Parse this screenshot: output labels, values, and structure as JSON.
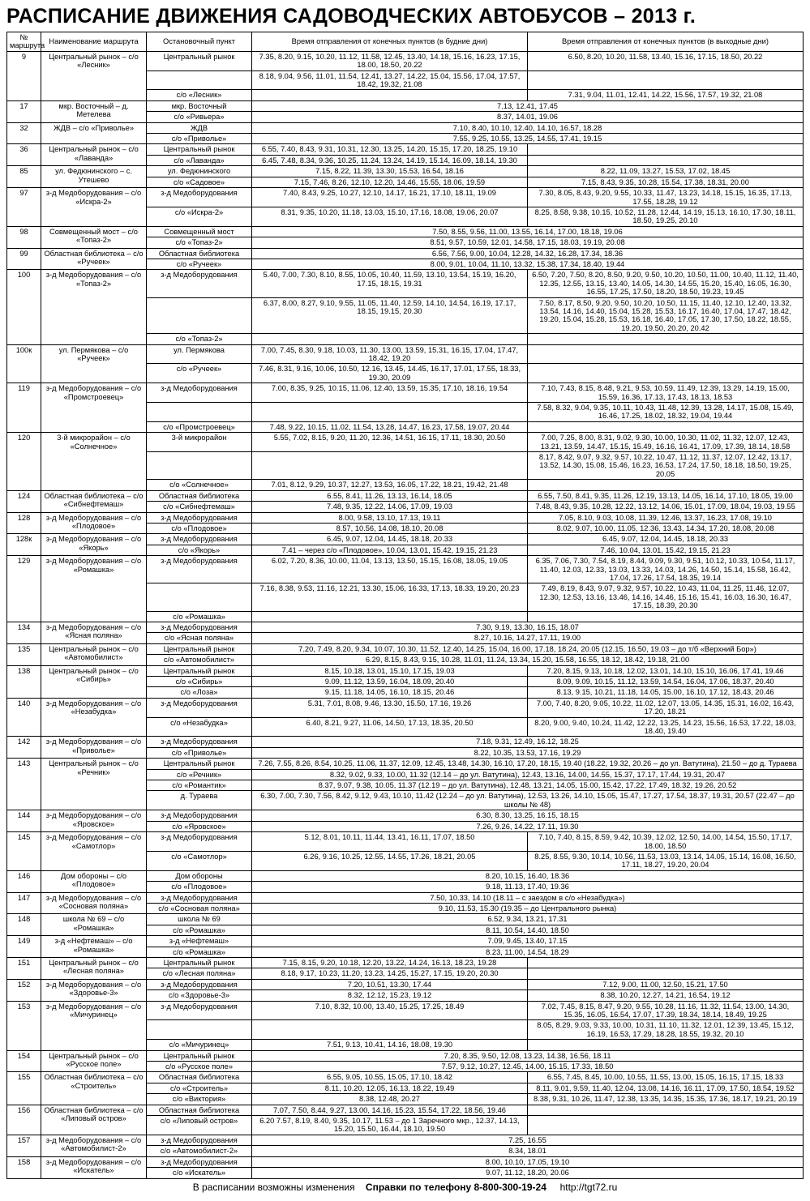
{
  "title": "РАСПИСАНИЕ ДВИЖЕНИЯ САДОВОДЧЕСКИХ АВТОБУСОВ – 2013 г.",
  "columns": [
    "№ маршрута",
    "Наименование маршрута",
    "Остановочный пункт",
    "Время отправления от конечных пунктов (в будние дни)",
    "Время отправления от конечных пунктов (в выходные дни)"
  ],
  "footer": {
    "note": "В расписании возможны изменения",
    "query": "Справки по телефону",
    "phone": "8-800-300-19-24",
    "url": "http://tgt72.ru"
  },
  "rows": [
    {
      "num": "9",
      "name": "Центральный рынок – с/о «Лесник»",
      "stops": [
        "Центральный рынок",
        "",
        "с/о «Лесник»"
      ],
      "wk": [
        "7.35, 8.20, 9.15, 10.20, 11.12, 11.58, 12.45, 13.40, 14.18, 15.16, 16.23, 17.15, 18.00, 18.50, 20.22",
        "8.18, 9.04, 9.56, 11.01, 11.54, 12.41, 13.27, 14.22, 15.04, 15.56, 17.04, 17.57, 18.42, 19.32, 21.08"
      ],
      "we": [
        "6.50, 8.20, 10.20, 11.58, 13.40, 15.16, 17.15, 18.50, 20.22",
        "",
        "7.31, 9.04, 11.01, 12.41, 14.22, 15.56, 17.57, 19.32, 21.08"
      ]
    },
    {
      "num": "17",
      "name": "мкр. Восточный – д. Метелева",
      "stops": [
        "мкр. Восточный",
        "с/о «Ривьера»"
      ],
      "merged": true,
      "wk": [
        "7.13, 12.41, 17.45",
        "8.37, 14.01, 19.06"
      ]
    },
    {
      "num": "32",
      "name": "ЖДВ – с/о «Приволье»",
      "stops": [
        "ЖДВ",
        "с/о «Приволье»"
      ],
      "merged": true,
      "wk": [
        "7.10, 8.40, 10.10, 12.40, 14.10, 16.57, 18.28",
        "7.55, 9.25, 10.55, 13.25, 14.55, 17.41, 19.15"
      ]
    },
    {
      "num": "36",
      "name": "Центральный рынок – с/о «Лаванда»",
      "stops": [
        "Центральный рынок",
        "с/о «Лаванда»"
      ],
      "wk": [
        "6.55, 7.40, 8.43, 9.31, 10.31, 12.30, 13.25, 14.20, 15.15, 17.20, 18.25, 19.10",
        "6.45, 7.48, 8.34, 9.36, 10.25, 11.24, 13.24, 14.19, 15.14, 16.09, 18.14, 19.30"
      ]
    },
    {
      "num": "85",
      "name": "ул. Федюнинского – с. Утешево",
      "stops": [
        "ул. Федюнинского",
        "с/о «Садовое»"
      ],
      "wk": [
        "7.15, 8.22, 11.39, 13.30, 15.53, 16.54, 18.16",
        "7.15, 7.46, 8.26, 12.10, 12.20, 14.46, 15.55, 18.06, 19.59"
      ],
      "we": [
        "8.22, 11.09, 13.27, 15.53, 17.02, 18.45",
        "7.15, 8.43, 9.35, 10.28, 15.54, 17.38, 18.31, 20.00"
      ]
    },
    {
      "num": "97",
      "name": "з-д Медоборудования – с/о «Искра-2»",
      "stops": [
        "з-д Медоборудования",
        "с/о «Искра-2»"
      ],
      "wk": [
        "7.40, 8.43, 9.25, 10.27, 12.10, 14.17, 16.21, 17.10, 18.11, 19.09",
        "8.31, 9.35, 10.20, 11.18, 13.03, 15.10, 17.16, 18.08, 19.06, 20.07"
      ],
      "we": [
        "7.30, 8.05, 8.43, 9.20, 9.55, 10.33, 11.47, 13.23, 14.18, 15.15, 16.35, 17.13, 17.55, 18.28, 19.12",
        "8.25, 8.58, 9.38, 10.15, 10.52, 11.28, 12.44, 14.19, 15.13, 16.10, 17.30, 18.11, 18.50, 19.25, 20.10"
      ]
    },
    {
      "num": "98",
      "name": "Совмещенный мост – с/о «Топаз-2»",
      "stops": [
        "Совмещенный мост",
        "с/о «Топаз-2»"
      ],
      "merged": true,
      "wk": [
        "7.50, 8.55, 9.56, 11.00, 13.55, 16.14, 17.00, 18.18, 19.06",
        "8.51, 9.57, 10.59, 12.01, 14.58, 17.15, 18.03, 19.19, 20.08"
      ]
    },
    {
      "num": "99",
      "name": "Областная библиотека – с/о «Ручеек»",
      "stops": [
        "Областная библиотека",
        "с/о «Ручеек»"
      ],
      "merged": true,
      "wk": [
        "6.56, 7.56, 9.00, 10.04, 12.28, 14.32, 16.28, 17.34, 18.36",
        "8.00, 9.01, 10.04, 11.10, 13.32, 15.38, 17.34, 18.40, 19.44"
      ]
    },
    {
      "num": "100",
      "name": "з-д Медоборудования – с/о «Топаз-2»",
      "stops": [
        "з-д Медоборудования",
        "",
        "с/о «Топаз-2»"
      ],
      "wk": [
        "5.40, 7.00, 7.30, 8.10, 8.55, 10.05, 10.40, 11.59, 13.10, 13.54, 15.19, 16.20, 17.15, 18.15, 19.31",
        "6.37, 8.00, 8.27, 9.10, 9.55, 11.05, 11.40, 12.59, 14.10, 14.54, 16.19, 17.17, 18.15, 19.15, 20.30"
      ],
      "we": [
        "6.50, 7.20, 7.50, 8.20, 8.50, 9.20, 9.50, 10.20, 10.50, 11.00, 10.40, 11.12, 11.40, 12.35, 12.55, 13.15, 13.40, 14.05, 14.30, 14.55, 15.20, 15.40, 16.05, 16.30, 16.55, 17.25, 17.50, 18.20, 18.50, 19.23, 19.45",
        "7.50, 8.17, 8.50, 9.20, 9.50, 10.20, 10.50, 11.15, 11.40, 12.10, 12.40, 13.32, 13.54, 14.16, 14.40, 15.04, 15.28, 15.53, 16.17, 16.40, 17.04, 17.47, 18.42, 19.20, 15.04, 15.28, 15.53, 16.18, 16.40, 17.05, 17.30, 17.50, 18.22, 18.55, 19.20, 19.50, 20.20, 20.42"
      ]
    },
    {
      "num": "100к",
      "name": "ул. Пермякова – с/о «Ручеек»",
      "stops": [
        "ул. Пермякова",
        "с/о «Ручеек»"
      ],
      "wk": [
        "7.00, 7.45, 8.30, 9.18, 10.03, 11.30, 13.00, 13.59, 15.31, 16.15, 17.04, 17.47, 18.42, 19.20",
        "7.46, 8.31, 9.16, 10.06, 10.50, 12.16, 13.45, 14.45, 16.17, 17.01, 17.55, 18.33, 19.30, 20.09"
      ]
    },
    {
      "num": "119",
      "name": "з-д Медоборудования – с/о «Промстроевец»",
      "stops": [
        "з-д Медоборудования",
        "",
        "с/о «Промстроевец»"
      ],
      "wk": [
        "7.00, 8.35, 9.25, 10.15, 11.06, 12.40, 13.59, 15.35, 17.10, 18.16, 19.54",
        "",
        "7.48, 9.22, 10.15, 11.02, 11.54, 13.28, 14.47, 16.23, 17.58, 19.07, 20.44"
      ],
      "we": [
        "7.10, 7.43, 8.15, 8.48, 9.21, 9.53, 10.59, 11.49, 12.39, 13.29, 14.19, 15.00, 15.59, 16.36, 17.13, 17.43, 18.13, 18.53",
        "7.58, 8.32, 9.04, 9.35, 10.11, 10.43, 11.48, 12.39, 13.28, 14.17, 15.08, 15.49, 16.46, 17.25, 18.02, 18.32, 19.04, 19.44"
      ]
    },
    {
      "num": "120",
      "name": "3-й микрорайон – с/о «Солнечное»",
      "stops": [
        "3-й микрорайон",
        "",
        "с/о «Солнечное»"
      ],
      "wk": [
        "5.55, 7.02, 8.15, 9.20, 11.20, 12.36, 14.51, 16.15, 17.11, 18.30, 20.50",
        "",
        "7.01, 8.12, 9.29, 10.37, 12.27, 13.53, 16.05, 17.22, 18.21, 19.42, 21.48"
      ],
      "we": [
        "7.00, 7.25, 8.00, 8.31, 9.02, 9.30, 10.00, 10.30, 11.02, 11.32, 12.07, 12.43, 13.21, 13.59, 14.47, 15.15, 15.49, 16.16, 16.41, 17.09, 17.39, 18.14, 18.58",
        "8.17, 8.42, 9.07, 9.32, 9.57, 10.22, 10.47, 11.12, 11.37, 12.07, 12.42, 13.17, 13.52, 14.30, 15.08, 15.46, 16.23, 16.53, 17.24, 17.50, 18.18, 18.50, 19.25, 20.05"
      ]
    },
    {
      "num": "124",
      "name": "Областная библиотека – с/о «Сибнефтемаш»",
      "stops": [
        "Областная библиотека",
        "с/о «Сибнефтемаш»"
      ],
      "wk": [
        "6.55, 8.41, 11.26, 13.13, 16.14, 18.05",
        "7.48, 9.35, 12.22, 14.06, 17.09, 19.03"
      ],
      "we": [
        "6.55, 7.50, 8.41, 9.35, 11.26, 12.19, 13.13, 14.05, 16.14, 17.10, 18.05, 19.00",
        "7.48, 8.43, 9.35, 10.28, 12.22, 13.12, 14.06, 15.01, 17.09, 18.04, 19.03, 19.55"
      ]
    },
    {
      "num": "128",
      "name": "з-д Медоборудования – с/о «Плодовое»",
      "stops": [
        "з-д Медоборудования",
        "с/о «Плодовое»"
      ],
      "wk": [
        "8.00, 9.58, 13.10, 17.13, 19.11",
        "8.57, 10.56, 14.08, 18.10, 20.08"
      ],
      "we": [
        "7.05, 8.10, 9.03, 10.08, 11.39, 12.46, 13.37, 16.23, 17.08, 19.10",
        "8.02, 9.07, 10.00, 11.05, 12.36, 13.43, 14.34, 17.20, 18.08, 20.08"
      ]
    },
    {
      "num": "128к",
      "name": "з-д Медоборудования – с/о «Якорь»",
      "stops": [
        "з-д Медоборудования",
        "с/о «Якорь»"
      ],
      "wk": [
        "6.45, 9.07, 12.04, 14.45, 18.18, 20.33",
        "7.41 – через с/о «Плодовое», 10.04, 13.01, 15.42, 19.15, 21.23"
      ],
      "we": [
        "6.45, 9.07, 12.04, 14.45, 18.18, 20.33",
        "7.46, 10.04, 13.01, 15.42, 19.15, 21.23"
      ]
    },
    {
      "num": "129",
      "name": "з-д Медоборудования – с/о «Ромашка»",
      "stops": [
        "з-д Медоборудования",
        "",
        "с/о «Ромашка»"
      ],
      "wk": [
        "6.02, 7.20, 8.36, 10.00, 11.04, 13.13, 13.50, 15.15, 16.08, 18.05, 19.05",
        "7.16, 8.38, 9.53, 11.16, 12.21, 13.30, 15.06, 16.33, 17.13, 18.33, 19.20, 20.23"
      ],
      "we": [
        "6.35, 7.06, 7.30, 7.54, 8.19, 8.44, 9.09, 9.30, 9.51, 10.12, 10.33, 10.54, 11.17, 11.40, 12.03, 12.33, 13.03, 13.33, 14.03, 14.26, 14.50, 15.14, 15.58, 16.42, 17.04, 17.26, 17.54, 18.35, 19.14",
        "7.49, 8.19, 8.43, 9.07, 9.32, 9.57, 10.22, 10.43, 11.04, 11.25, 11.46, 12.07, 12.30, 12.53, 13.16, 13.46, 14.16, 14.46, 15.16, 15.41, 16.03, 16.30, 16.47, 17.15, 18.39, 20.30"
      ]
    },
    {
      "num": "134",
      "name": "з-д Медоборудования – с/о «Ясная поляна»",
      "stops": [
        "з-д Медоборудования",
        "с/о «Ясная поляна»"
      ],
      "merged": true,
      "wk": [
        "7.30, 9.19, 13.30, 16.15, 18.07",
        "8.27, 10.16, 14.27, 17.11, 19.00"
      ]
    },
    {
      "num": "135",
      "name": "Центральный рынок – с/о «Автомобилист»",
      "stops": [
        "Центральный рынок",
        "с/о «Автомобилист»"
      ],
      "merged": true,
      "wk": [
        "7.20, 7.49, 8.20, 9.34, 10.07, 10.30, 11.52, 12.40, 14.25, 15.04, 16.00, 17.18, 18.24, 20.05 (12.15, 16.50, 19.03 – до т/б «Верхний Бор»)",
        "6.29, 8.15, 8.43, 9.15, 10.28, 11.01, 11.24, 13.34, 15.20, 15.58, 16.55, 18.12, 18.42, 19.18, 21.00"
      ]
    },
    {
      "num": "138",
      "name": "Центральный рынок – с/о «Сибирь»",
      "stops": [
        "Центральный рынок",
        "с/о «Сибирь»",
        "с/о «Лоза»"
      ],
      "wk": [
        "8.15, 10.18, 13.01, 15.10, 17.15, 19.03",
        "9.09, 11.12, 13.59, 16.04, 18.09, 20.40",
        "9.15, 11.18, 14.05, 16.10, 18.15, 20.46"
      ],
      "we": [
        "7.20, 8.15, 9.13, 10.18, 12.02, 13.01, 14.10, 15.10, 16.06, 17.41, 19.46",
        "8.09, 9.09, 10.15, 11.12, 13.59, 14.54, 16.04, 17.06, 18.37, 20.40",
        "8.13, 9.15, 10.21, 11.18, 14.05, 15.00, 16.10, 17.12, 18.43, 20.46"
      ]
    },
    {
      "num": "140",
      "name": "з-д Медоборудования – с/о «Незабудка»",
      "stops": [
        "з-д Медоборудования",
        "с/о «Незабудка»"
      ],
      "wk": [
        "5.31, 7.01, 8.08, 9.46, 13.30, 15.50, 17.16, 19.26",
        "6.40, 8.21, 9.27, 11.06, 14.50, 17.13, 18.35, 20.50"
      ],
      "we": [
        "7.00, 7.40, 8.20, 9.05, 10.22, 11.02, 12.07, 13.05, 14.35, 15.31, 16.02, 16.43, 17.20, 18.21",
        "8.20, 9.00, 9.40, 10.24, 11.42, 12.22, 13.25, 14.23, 15.56, 16.53, 17.22, 18.03, 18.40, 19.40"
      ]
    },
    {
      "num": "142",
      "name": "з-д Медоборудования – с/о «Приволье»",
      "stops": [
        "з-д Медоборудования",
        "с/о «Приволье»"
      ],
      "merged": true,
      "wk": [
        "7.18, 9.31, 12.49, 16.12, 18.25",
        "8.22, 10.35, 13.53, 17.16, 19.29"
      ]
    },
    {
      "num": "143",
      "name": "Центральный рынок – с/о «Речник»",
      "stops": [
        "Центральный рынок",
        "с/о «Речник»",
        "с/о «Романтик»",
        "д. Тураева"
      ],
      "merged": true,
      "wk": [
        "7.26, 7.55, 8.26, 8.54, 10.25, 11.06, 11.37, 12.09, 12.45, 13.48, 14.30, 16.10, 17.20, 18.15, 19.40 (18.22, 19.32, 20.26 – до ул. Ватутина), 21.50 – до д. Тураева",
        "8.32, 9.02, 9.33, 10.00, 11.32 (12.14 – до ул. Ватутина), 12.43, 13.16, 14.00, 14.55, 15.37, 17.17, 17.44, 19.31, 20.47",
        "8.37, 9.07, 9.38, 10.05, 11.37 (12.19 – до ул. Ватутина), 12.48, 13.21, 14.05, 15.00, 15.42, 17.22, 17.49, 18.32, 19.26, 20.52",
        "6.30, 7.00, 7.30, 7.56, 8.42, 9.12, 9.43, 10.10, 11.42 (12.24 – до ул. Ватутина), 12.53, 13.26, 14.10, 15.05, 15.47, 17.27, 17.54, 18.37, 19.31, 20.57 (22.47 – до школы № 48)"
      ]
    },
    {
      "num": "144",
      "name": "з-д Медоборудования – с/о «Яровское»",
      "stops": [
        "з-д Медоборудования",
        "с/о «Яровское»"
      ],
      "merged": true,
      "wk": [
        "6.30, 8.30, 13.25, 16.15, 18.15",
        "7.26, 9.26, 14.22, 17.11, 19.30"
      ]
    },
    {
      "num": "145",
      "name": "з-д Медоборудования – с/о «Самотлор»",
      "stops": [
        "з-д Медоборудования",
        "с/о «Самотлор»"
      ],
      "wk": [
        "5.12, 8.01, 10.11, 11.44, 13.41, 16.11, 17.07, 18.50",
        "6.26, 9.16, 10.25, 12.55, 14.55, 17.26, 18.21, 20.05"
      ],
      "we": [
        "7.10, 7.40, 8.15, 8.59, 9.42, 10.39, 12.02, 12.50, 14.00, 14.54, 15.50, 17.17, 18.00, 18.50",
        "8.25, 8.55, 9.30, 10.14, 10.56, 11.53, 13.03, 13.14, 14.05, 15.14, 16.08, 16.50, 17.11, 18.27, 19.20, 20.04"
      ]
    },
    {
      "num": "146",
      "name": "Дом обороны – с/о «Плодовое»",
      "stops": [
        "Дом обороны",
        "с/о «Плодовое»"
      ],
      "merged": true,
      "wk": [
        "8.20, 10.15, 16.40, 18.36",
        "9.18, 11.13, 17.40, 19.36"
      ]
    },
    {
      "num": "147",
      "name": "з-д Медоборудования – с/о «Сосновая поляна»",
      "stops": [
        "з-д Медоборудования",
        "с/о «Сосновая поляна»"
      ],
      "merged": true,
      "wk": [
        "7.50, 10.33, 14.10 (18.11 – с заездом в с/о «Незабудка»)",
        "9.10, 11.53, 15.30 (19.35 – до Центрального рынка)"
      ]
    },
    {
      "num": "148",
      "name": "школа № 69 – с/о «Ромашка»",
      "stops": [
        "школа № 69",
        "с/о «Ромашка»"
      ],
      "merged": true,
      "wk": [
        "6.52, 9.34, 13.21, 17.31",
        "8.11, 10.54, 14.40, 18.50"
      ]
    },
    {
      "num": "149",
      "name": "з-д «Нефтемаш» – с/о «Ромашка»",
      "stops": [
        "з-д «Нефтемаш»",
        "с/о «Ромашка»"
      ],
      "merged": true,
      "wk": [
        "7.09, 9.45, 13.40, 17.15",
        "8.23, 11.00, 14.54, 18.29"
      ]
    },
    {
      "num": "151",
      "name": "Центральный рынок – с/о «Лесная поляна»",
      "stops": [
        "Центральный рынок",
        "с/о «Лесная поляна»"
      ],
      "wk": [
        "7.15, 8.15, 9.20, 10.18, 12.20, 13.22, 14.24, 16.13, 18.23, 19.28",
        "8.18, 9.17, 10.23, 11.20, 13.23, 14.25, 15.27, 17.15, 19.20, 20.30"
      ]
    },
    {
      "num": "152",
      "name": "з-д Медоборудования – с/о «Здоровье-3»",
      "stops": [
        "з-д Медоборудования",
        "с/о «Здоровье-3»"
      ],
      "wk": [
        "7.20, 10.51, 13.30, 17.44",
        "8.32, 12.12, 15.23, 19.12"
      ],
      "we": [
        "7.12, 9.00, 11.00, 12.50, 15.21, 17.50",
        "8.38, 10.20, 12.27, 14.21, 16.54, 19.12"
      ]
    },
    {
      "num": "153",
      "name": "з-д Медоборудования – с/о «Мичуринец»",
      "stops": [
        "з-д Медоборудования",
        "",
        "с/о «Мичуринец»"
      ],
      "wk": [
        "7.10, 8.32, 10.00, 13.40, 15.25, 17.25, 18.49",
        "",
        "7.51, 9.13, 10.41, 14.16, 18.08, 19.30"
      ],
      "we": [
        "7.02, 7.45, 8.15, 8.47, 9.20, 9.55, 10.28, 11.16, 11.32, 11.54, 13.00, 14.30, 15.35, 16.05, 16.54, 17.07, 17.39, 18.34, 18.14, 18.49, 19.25",
        "8.05, 8.29, 9.03, 9.33, 10.00, 10.31, 11.10, 11.32, 12.01, 12.39, 13.45, 15.12, 16.19, 16.53, 17.29, 18.28, 18.55, 19.32, 20.10"
      ]
    },
    {
      "num": "154",
      "name": "Центральный рынок – с/о «Русское поле»",
      "stops": [
        "Центральный рынок",
        "с/о «Русское поле»"
      ],
      "merged": true,
      "wk": [
        "7.20, 8.35, 9.50, 12.08, 13.23, 14.38, 16.56, 18.11",
        "7.57, 9.12, 10.27, 12.45, 14.00, 15.15, 17.33, 18.50"
      ]
    },
    {
      "num": "155",
      "name": "Областная библиотека – с/о «Строитель»",
      "stops": [
        "Областная библиотека",
        "с/о «Строитель»",
        "с/о «Виктория»"
      ],
      "wk": [
        "6.55, 9.05, 10.55, 15.05, 17.10, 18.42",
        "8.11, 10.20, 12.05, 16.13, 18.22, 19.49",
        "8.38, 12.48, 20.27"
      ],
      "we": [
        "6.55, 7.45, 8.45, 10.00, 10.55, 11.55, 13.00, 15.05, 16.15, 17.15, 18.33",
        "8.11, 9.01, 9.59, 11.40, 12.04, 13.08, 14.16, 16.11, 17.09, 17.50, 18.54, 19.52",
        "8.38, 9.31, 10.26, 11.47, 12.38, 13.35, 14.35, 15.35, 17.36, 18.17, 19.21, 20.19"
      ]
    },
    {
      "num": "156",
      "name": "Областная библиотека – с/о «Липовый остров»",
      "stops": [
        "Областная библиотека",
        "с/о «Липовый остров»"
      ],
      "wk": [
        "7.07, 7.50, 8.44, 9.27, 13.00, 14.16, 15.23, 15.54, 17.22, 18.56, 19.46",
        "6.20 7.57, 8.19, 8.40, 9.35, 10.17, 11.53 – до 1 Заречного мкр., 12.37, 14.13, 15.20, 15.50, 16.44, 18.10, 19.50"
      ]
    },
    {
      "num": "157",
      "name": "з-д Медоборудования – с/о «Автомобилист-2»",
      "stops": [
        "з-д Медоборудования",
        "с/о «Автомобилист-2»"
      ],
      "merged": true,
      "wk": [
        "7.25, 16.55",
        "8.34, 18.01"
      ]
    },
    {
      "num": "158",
      "name": "з-д Медоборудования – с/о «Искатель»",
      "stops": [
        "з-д Медоборудования",
        "с/о «Искатель»"
      ],
      "merged": true,
      "wk": [
        "8.00, 10.10, 17.05, 19.10",
        "9.07, 11.12, 18.20, 20.06"
      ]
    }
  ]
}
